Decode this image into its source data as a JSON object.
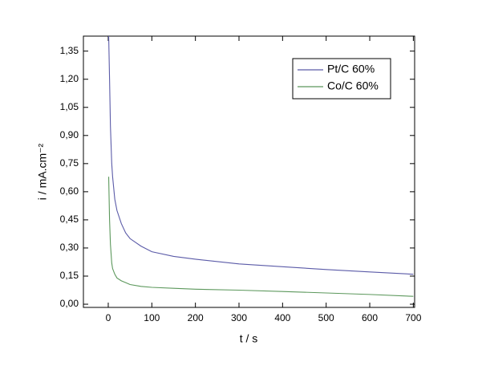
{
  "chart_data": {
    "type": "line",
    "xlabel": "t / s",
    "ylabel": "i / mA.cm⁻²",
    "x": [
      1,
      3,
      5,
      8,
      10,
      15,
      20,
      30,
      40,
      50,
      75,
      100,
      150,
      200,
      300,
      400,
      500,
      600,
      700
    ],
    "series": [
      {
        "name": "Pt/C 60%",
        "color": "#5b5ba8",
        "values": [
          1.43,
          1.2,
          0.95,
          0.75,
          0.68,
          0.56,
          0.5,
          0.43,
          0.38,
          0.35,
          0.31,
          0.28,
          0.255,
          0.24,
          0.215,
          0.2,
          0.185,
          0.172,
          0.16
        ]
      },
      {
        "name": "Co/C 60%",
        "color": "#5c985c",
        "values": [
          0.68,
          0.45,
          0.32,
          0.22,
          0.19,
          0.16,
          0.14,
          0.125,
          0.115,
          0.105,
          0.095,
          0.09,
          0.085,
          0.08,
          0.075,
          0.068,
          0.06,
          0.052,
          0.042
        ]
      }
    ],
    "xlim": [
      -57,
      703
    ],
    "ylim": [
      -0.017,
      1.43
    ],
    "xticks": [
      0,
      100,
      200,
      300,
      400,
      500,
      600,
      700
    ],
    "yticks": [
      {
        "value": 0,
        "label": "0,00"
      },
      {
        "value": 0.15,
        "label": "0,15"
      },
      {
        "value": 0.3,
        "label": "0,30"
      },
      {
        "value": 0.45,
        "label": "0,45"
      },
      {
        "value": 0.6,
        "label": "0,60"
      },
      {
        "value": 0.75,
        "label": "0,75"
      },
      {
        "value": 0.9,
        "label": "0,90"
      },
      {
        "value": 1.05,
        "label": "1,05"
      },
      {
        "value": 1.2,
        "label": "1,20"
      },
      {
        "value": 1.35,
        "label": "1,35"
      }
    ],
    "legend": "upper right",
    "grid": false
  }
}
